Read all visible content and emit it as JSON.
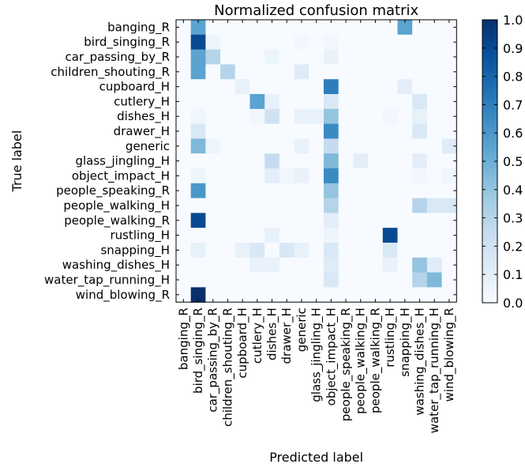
{
  "chart_data": {
    "type": "heatmap",
    "title": "Normalized confusion matrix",
    "xlabel": "Predicted label",
    "ylabel": "True label",
    "row_labels": [
      "banging_R",
      "bird_singing_R",
      "car_passing_by_R",
      "children_shouting_R",
      "cupboard_H",
      "cutlery_H",
      "dishes_H",
      "drawer_H",
      "generic",
      "glass_jingling_H",
      "object_impact_H",
      "people_speaking_R",
      "people_walking_H",
      "people_walking_R",
      "rustling_H",
      "snapping_H",
      "washing_dishes_H",
      "water_tap_running_H",
      "wind_blowing_R"
    ],
    "col_labels": [
      "banging_R",
      "bird_singing_R",
      "car_passing_by_R",
      "children_shouting_R",
      "cupboard_H",
      "cutlery_H",
      "dishes_H",
      "drawer_H",
      "generic",
      "glass_jingling_H",
      "object_impact_H",
      "people_speaking_R",
      "people_walking_H",
      "people_walking_R",
      "rustling_H",
      "snapping_H",
      "washing_dishes_H",
      "water_tap_running_H",
      "wind_blowing_R"
    ],
    "values": [
      [
        0,
        0.55,
        0,
        0,
        0,
        0,
        0,
        0,
        0,
        0,
        0,
        0,
        0,
        0,
        0,
        0.55,
        0,
        0,
        0
      ],
      [
        0,
        0.9,
        0.05,
        0,
        0,
        0,
        0,
        0,
        0.03,
        0,
        0.03,
        0,
        0,
        0,
        0,
        0,
        0,
        0,
        0
      ],
      [
        0,
        0.55,
        0.3,
        0,
        0,
        0,
        0.05,
        0,
        0,
        0,
        0.07,
        0,
        0,
        0,
        0,
        0,
        0,
        0,
        0
      ],
      [
        0,
        0.55,
        0,
        0.3,
        0,
        0,
        0,
        0,
        0.12,
        0,
        0,
        0,
        0,
        0,
        0,
        0,
        0,
        0,
        0
      ],
      [
        0,
        0,
        0,
        0,
        0.08,
        0,
        0,
        0,
        0,
        0,
        0.7,
        0,
        0,
        0,
        0,
        0.1,
        0,
        0,
        0
      ],
      [
        0,
        0,
        0,
        0,
        0,
        0.55,
        0.08,
        0,
        0,
        0,
        0.15,
        0,
        0,
        0,
        0,
        0,
        0.15,
        0,
        0
      ],
      [
        0,
        0.04,
        0,
        0,
        0,
        0.04,
        0.2,
        0,
        0.07,
        0.07,
        0.4,
        0,
        0,
        0,
        0.03,
        0,
        0.08,
        0,
        0
      ],
      [
        0,
        0.15,
        0,
        0,
        0,
        0,
        0,
        0,
        0,
        0,
        0.65,
        0,
        0,
        0,
        0,
        0,
        0.15,
        0,
        0
      ],
      [
        0,
        0.45,
        0.05,
        0,
        0,
        0,
        0,
        0,
        0.07,
        0,
        0.25,
        0,
        0,
        0,
        0,
        0,
        0,
        0,
        0.12
      ],
      [
        0,
        0,
        0,
        0,
        0,
        0,
        0.25,
        0,
        0,
        0,
        0.45,
        0,
        0.1,
        0,
        0,
        0,
        0.1,
        0,
        0
      ],
      [
        0,
        0.05,
        0,
        0,
        0,
        0,
        0.1,
        0.04,
        0.07,
        0,
        0.65,
        0,
        0,
        0,
        0,
        0,
        0.03,
        0,
        0.04
      ],
      [
        0,
        0.6,
        0,
        0,
        0,
        0,
        0,
        0,
        0,
        0,
        0.4,
        0,
        0,
        0,
        0,
        0,
        0,
        0,
        0
      ],
      [
        0,
        0,
        0,
        0,
        0,
        0,
        0,
        0,
        0,
        0,
        0.3,
        0,
        0,
        0,
        0,
        0,
        0.3,
        0.15,
        0.15
      ],
      [
        0,
        0.9,
        0,
        0,
        0,
        0,
        0,
        0,
        0,
        0,
        0.1,
        0,
        0,
        0,
        0,
        0,
        0,
        0,
        0
      ],
      [
        0,
        0,
        0,
        0,
        0,
        0,
        0.08,
        0,
        0,
        0,
        0.05,
        0,
        0,
        0,
        0.9,
        0,
        0,
        0,
        0
      ],
      [
        0,
        0.08,
        0,
        0,
        0.08,
        0.15,
        0,
        0.15,
        0.08,
        0,
        0.15,
        0,
        0,
        0,
        0.15,
        0,
        0,
        0,
        0
      ],
      [
        0,
        0,
        0,
        0,
        0,
        0.07,
        0.07,
        0,
        0,
        0,
        0.12,
        0,
        0,
        0,
        0.07,
        0,
        0.4,
        0.12,
        0
      ],
      [
        0,
        0,
        0,
        0,
        0,
        0,
        0,
        0,
        0,
        0,
        0.15,
        0,
        0,
        0,
        0,
        0,
        0.3,
        0.45,
        0
      ],
      [
        0,
        1.0,
        0,
        0,
        0,
        0,
        0,
        0,
        0,
        0,
        0,
        0,
        0,
        0,
        0,
        0,
        0,
        0,
        0
      ]
    ],
    "colorbar": {
      "cmap": "Blues",
      "vmin": 0.0,
      "vmax": 1.0,
      "tick_labels": [
        "0.0",
        "0.1",
        "0.2",
        "0.3",
        "0.4",
        "0.5",
        "0.6",
        "0.7",
        "0.8",
        "0.9",
        "1.0"
      ]
    }
  }
}
